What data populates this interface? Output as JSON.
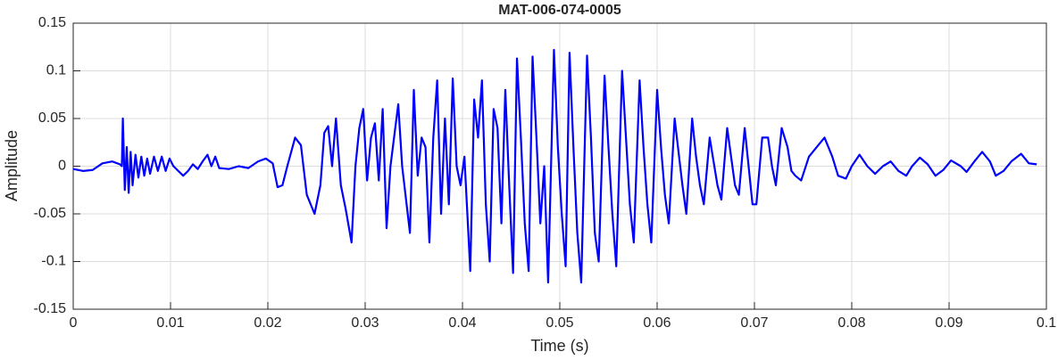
{
  "chart_data": {
    "type": "line",
    "title": "MAT-006-074-0005",
    "xlabel": "Time (s)",
    "ylabel": "Amplitude",
    "color": "#0000ff",
    "grid": true,
    "xlim": [
      0,
      0.1
    ],
    "ylim": [
      -0.15,
      0.15
    ],
    "xticks": [
      0,
      0.01,
      0.02,
      0.03,
      0.04,
      0.05,
      0.06,
      0.07,
      0.08,
      0.09,
      0.1
    ],
    "yticks": [
      -0.15,
      -0.1,
      -0.05,
      0,
      0.05,
      0.1,
      0.15
    ],
    "x": [
      0,
      0.001,
      0.002,
      0.003,
      0.004,
      0.0048,
      0.005,
      0.0051,
      0.0053,
      0.0055,
      0.0057,
      0.0059,
      0.0061,
      0.0064,
      0.0067,
      0.007,
      0.0073,
      0.0076,
      0.0079,
      0.0083,
      0.0087,
      0.0091,
      0.0095,
      0.0099,
      0.0103,
      0.0108,
      0.0113,
      0.0118,
      0.0123,
      0.0128,
      0.0133,
      0.0138,
      0.0142,
      0.0146,
      0.015,
      0.016,
      0.017,
      0.018,
      0.019,
      0.0198,
      0.0205,
      0.021,
      0.0215,
      0.022,
      0.0228,
      0.0234,
      0.024,
      0.0248,
      0.0254,
      0.0258,
      0.0262,
      0.0266,
      0.027,
      0.0275,
      0.028,
      0.0286,
      0.029,
      0.0294,
      0.0298,
      0.0302,
      0.0306,
      0.031,
      0.0314,
      0.0318,
      0.0322,
      0.0326,
      0.0334,
      0.0338,
      0.0342,
      0.0346,
      0.035,
      0.0354,
      0.0358,
      0.0362,
      0.0366,
      0.037,
      0.0374,
      0.0378,
      0.0382,
      0.0386,
      0.039,
      0.0394,
      0.0398,
      0.0402,
      0.0408,
      0.0412,
      0.0416,
      0.042,
      0.0424,
      0.0428,
      0.0432,
      0.0436,
      0.044,
      0.0444,
      0.0448,
      0.0452,
      0.0456,
      0.046,
      0.0464,
      0.0468,
      0.0472,
      0.0476,
      0.048,
      0.0484,
      0.0488,
      0.0494,
      0.0498,
      0.0502,
      0.0506,
      0.051,
      0.0514,
      0.0518,
      0.0522,
      0.0528,
      0.0532,
      0.0536,
      0.054,
      0.0546,
      0.055,
      0.0554,
      0.0558,
      0.0564,
      0.0568,
      0.0572,
      0.0576,
      0.0582,
      0.0586,
      0.059,
      0.0594,
      0.06,
      0.0604,
      0.0608,
      0.0612,
      0.0618,
      0.0622,
      0.0626,
      0.063,
      0.0636,
      0.064,
      0.0644,
      0.0648,
      0.0654,
      0.0658,
      0.0662,
      0.0666,
      0.0672,
      0.0676,
      0.068,
      0.0684,
      0.069,
      0.0694,
      0.0698,
      0.0702,
      0.0708,
      0.0714,
      0.0718,
      0.0722,
      0.0728,
      0.0734,
      0.0738,
      0.0742,
      0.0748,
      0.0756,
      0.0764,
      0.0772,
      0.078,
      0.0786,
      0.0794,
      0.08,
      0.0808,
      0.0816,
      0.0824,
      0.0832,
      0.084,
      0.0848,
      0.0856,
      0.0862,
      0.087,
      0.0878,
      0.0886,
      0.0894,
      0.0902,
      0.0912,
      0.0918,
      0.0926,
      0.0934,
      0.0942,
      0.0948,
      0.0956,
      0.0964,
      0.0974,
      0.0982,
      0.099
    ],
    "values": [
      -0.003,
      -0.005,
      -0.004,
      0.003,
      0.005,
      0.002,
      0,
      0.05,
      -0.025,
      0.02,
      -0.028,
      0.015,
      -0.02,
      0.012,
      -0.012,
      0.01,
      -0.01,
      0.008,
      -0.008,
      0.01,
      -0.005,
      0.01,
      -0.005,
      0.008,
      0,
      -0.005,
      -0.01,
      -0.005,
      0.002,
      -0.003,
      0.005,
      0.012,
      0,
      0.01,
      -0.002,
      -0.003,
      0,
      -0.002,
      0.005,
      0.008,
      0.003,
      -0.022,
      -0.02,
      0,
      0.03,
      0.022,
      -0.03,
      -0.05,
      -0.02,
      0.035,
      0.042,
      0,
      0.05,
      -0.02,
      -0.045,
      -0.08,
      0,
      0.04,
      0.06,
      -0.015,
      0.03,
      0.045,
      -0.015,
      0.06,
      -0.065,
      0,
      0.065,
      0,
      -0.035,
      -0.07,
      0.08,
      -0.01,
      0.03,
      0.02,
      -0.08,
      0.03,
      0.09,
      -0.05,
      0.05,
      -0.04,
      0.092,
      0,
      -0.02,
      0.01,
      -0.11,
      0.07,
      0.03,
      0.09,
      -0.04,
      -0.1,
      0.06,
      0.04,
      -0.06,
      0.08,
      -0.02,
      -0.112,
      0.113,
      0.03,
      -0.06,
      -0.11,
      0.115,
      0.03,
      -0.06,
      0,
      -0.122,
      0.122,
      0.02,
      -0.05,
      -0.105,
      0.119,
      0.02,
      -0.07,
      -0.122,
      0.116,
      0.03,
      -0.07,
      -0.1,
      0.095,
      0.02,
      -0.05,
      -0.105,
      0.1,
      0.03,
      -0.04,
      -0.08,
      0.09,
      0.02,
      -0.04,
      -0.08,
      0.08,
      0.02,
      -0.03,
      -0.06,
      0.05,
      0.015,
      -0.02,
      -0.05,
      0.05,
      0.01,
      -0.02,
      -0.04,
      0.03,
      0.005,
      -0.02,
      -0.035,
      0.04,
      0.01,
      -0.02,
      -0.03,
      0.04,
      0,
      -0.04,
      -0.04,
      0.03,
      0.03,
      0,
      -0.02,
      0.04,
      0.02,
      -0.005,
      -0.01,
      -0.015,
      0.01,
      0.02,
      0.03,
      0.01,
      -0.01,
      -0.013,
      0,
      0.012,
      0,
      -0.008,
      0,
      0.005,
      -0.005,
      -0.01,
      0,
      0.009,
      0.002,
      -0.01,
      -0.004,
      0.006,
      0,
      -0.006,
      0.005,
      0.015,
      0.005,
      -0.01,
      -0.005,
      0.005,
      0.013,
      0.003,
      0.002
    ]
  }
}
